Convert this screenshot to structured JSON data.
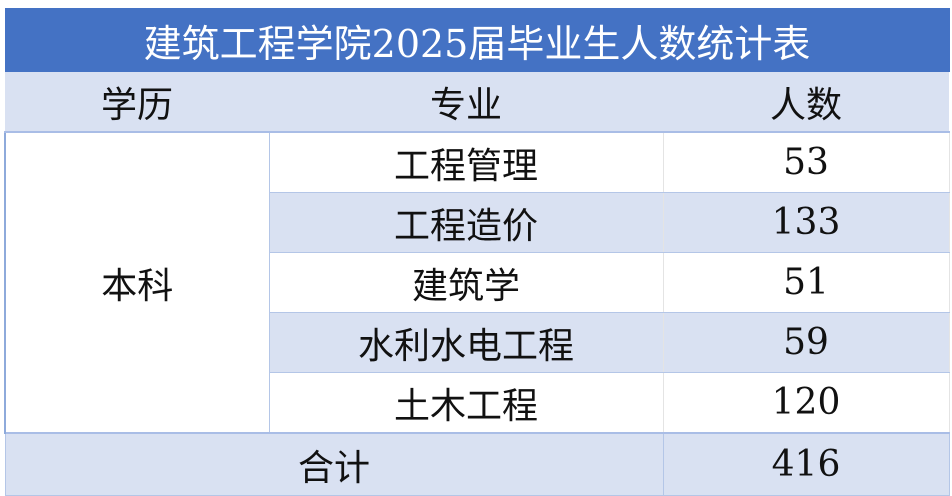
{
  "title": "建筑工程学院2025届毕业生人数统计表",
  "headers": [
    "学历",
    "专业",
    "人数"
  ],
  "education": "本科",
  "rows": [
    {
      "major": "工程管理",
      "count": "53"
    },
    {
      "major": "工程造价",
      "count": "133"
    },
    {
      "major": "建筑学",
      "count": "51"
    },
    {
      "major": "水利水电工程",
      "count": "59"
    },
    {
      "major": "土木工程",
      "count": "120"
    }
  ],
  "total": {
    "label": "合计",
    "count": "416"
  },
  "colors": {
    "title_bg": "#4472c4",
    "stripe": "#d9e1f2"
  }
}
